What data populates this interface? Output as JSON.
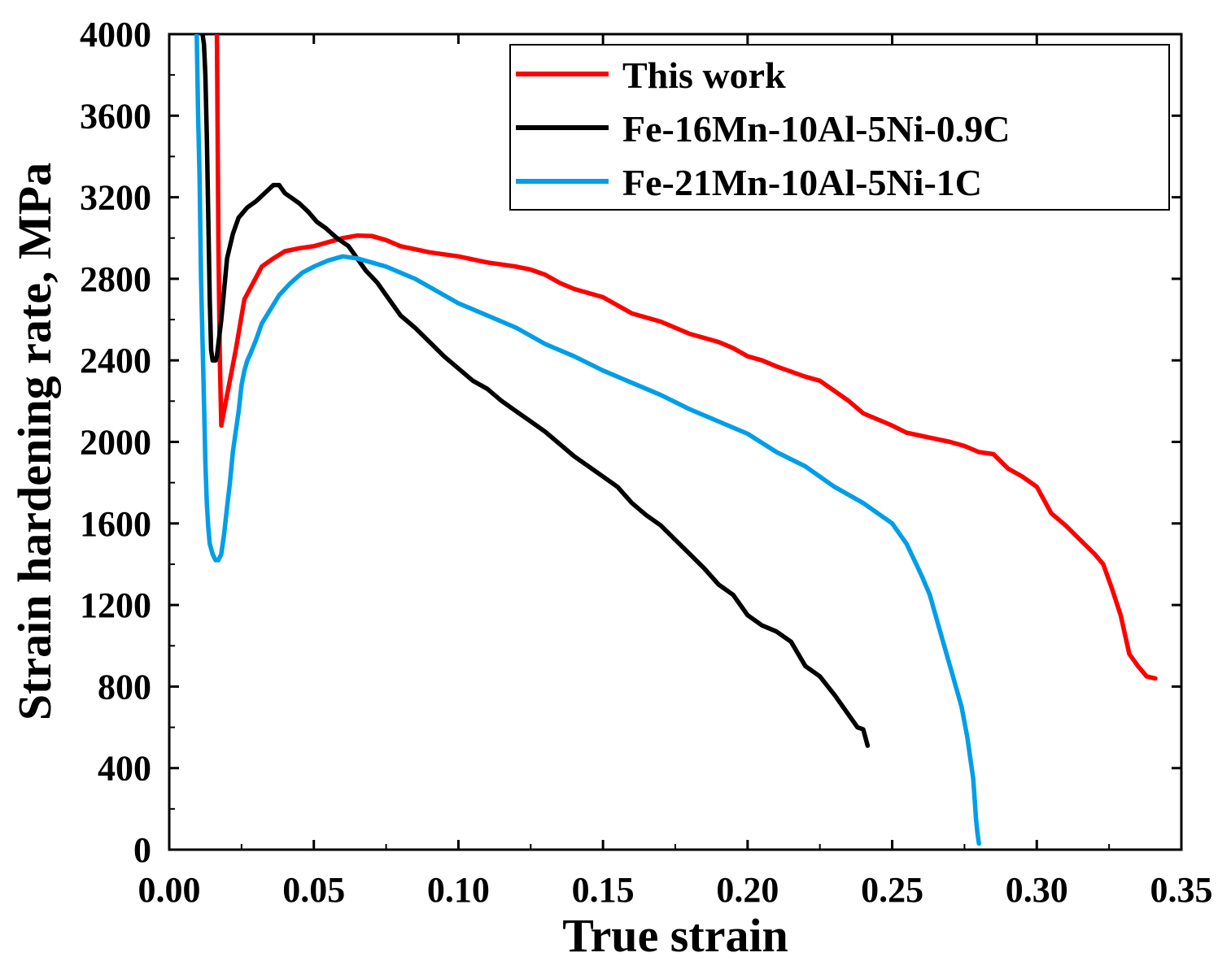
{
  "chart_data": {
    "type": "line",
    "title": "",
    "xlabel": "True strain",
    "ylabel": "Strain hardening rate, MPa",
    "xlim": [
      0,
      0.35
    ],
    "ylim": [
      0,
      4000
    ],
    "xticks": [
      0.0,
      0.05,
      0.1,
      0.15,
      0.2,
      0.25,
      0.3,
      0.35
    ],
    "xtick_labels": [
      "0.00",
      "0.05",
      "0.10",
      "0.15",
      "0.20",
      "0.25",
      "0.30",
      "0.35"
    ],
    "yticks": [
      0,
      400,
      800,
      1200,
      1600,
      2000,
      2400,
      2800,
      3200,
      3600,
      4000
    ],
    "ytick_labels": [
      "0",
      "400",
      "800",
      "1200",
      "1600",
      "2000",
      "2400",
      "2800",
      "3200",
      "3600",
      "4000"
    ],
    "grid": false,
    "legend_position": "top-right",
    "series": [
      {
        "name": "This work",
        "color": "#ff0000",
        "x": [
          0.0165,
          0.017,
          0.0175,
          0.018,
          0.0185,
          0.02,
          0.023,
          0.026,
          0.029,
          0.032,
          0.036,
          0.04,
          0.045,
          0.05,
          0.055,
          0.06,
          0.065,
          0.07,
          0.075,
          0.08,
          0.09,
          0.1,
          0.11,
          0.12,
          0.125,
          0.13,
          0.135,
          0.14,
          0.15,
          0.155,
          0.16,
          0.17,
          0.175,
          0.18,
          0.19,
          0.195,
          0.2,
          0.205,
          0.21,
          0.22,
          0.225,
          0.23,
          0.235,
          0.24,
          0.245,
          0.25,
          0.255,
          0.26,
          0.27,
          0.275,
          0.28,
          0.285,
          0.29,
          0.295,
          0.3,
          0.305,
          0.31,
          0.315,
          0.32,
          0.323,
          0.326,
          0.329,
          0.332,
          0.335,
          0.338,
          0.341
        ],
        "y": [
          4000,
          3000,
          2400,
          2080,
          2120,
          2230,
          2450,
          2700,
          2780,
          2860,
          2900,
          2935,
          2950,
          2960,
          2980,
          3000,
          3012,
          3010,
          2990,
          2960,
          2930,
          2910,
          2880,
          2860,
          2845,
          2820,
          2780,
          2750,
          2710,
          2670,
          2630,
          2590,
          2560,
          2530,
          2490,
          2460,
          2420,
          2400,
          2370,
          2320,
          2300,
          2250,
          2200,
          2140,
          2110,
          2080,
          2045,
          2030,
          2000,
          1980,
          1950,
          1940,
          1870,
          1830,
          1780,
          1650,
          1590,
          1520,
          1450,
          1400,
          1280,
          1150,
          960,
          900,
          850,
          840
        ]
      },
      {
        "name": "Fe-16Mn-10Al-5Ni-0.9C",
        "color": "#000000",
        "x": [
          0.0115,
          0.012,
          0.0125,
          0.013,
          0.0135,
          0.014,
          0.0145,
          0.015,
          0.016,
          0.0165,
          0.017,
          0.018,
          0.02,
          0.022,
          0.024,
          0.027,
          0.03,
          0.033,
          0.036,
          0.038,
          0.04,
          0.042,
          0.045,
          0.048,
          0.051,
          0.054,
          0.058,
          0.062,
          0.065,
          0.068,
          0.072,
          0.076,
          0.08,
          0.085,
          0.09,
          0.095,
          0.1,
          0.105,
          0.11,
          0.115,
          0.12,
          0.125,
          0.13,
          0.135,
          0.14,
          0.145,
          0.15,
          0.155,
          0.16,
          0.165,
          0.17,
          0.175,
          0.18,
          0.185,
          0.19,
          0.195,
          0.2,
          0.205,
          0.21,
          0.215,
          0.22,
          0.225,
          0.23,
          0.235,
          0.238,
          0.24,
          0.2415
        ],
        "y": [
          4000,
          3950,
          3800,
          3500,
          3100,
          2700,
          2450,
          2400,
          2400,
          2420,
          2480,
          2600,
          2900,
          3020,
          3100,
          3150,
          3180,
          3220,
          3260,
          3260,
          3220,
          3200,
          3170,
          3130,
          3080,
          3050,
          3000,
          2960,
          2900,
          2840,
          2780,
          2700,
          2620,
          2560,
          2490,
          2420,
          2360,
          2300,
          2260,
          2200,
          2150,
          2100,
          2050,
          1990,
          1930,
          1880,
          1830,
          1780,
          1700,
          1640,
          1590,
          1520,
          1450,
          1380,
          1300,
          1250,
          1150,
          1100,
          1070,
          1020,
          900,
          850,
          760,
          660,
          600,
          590,
          510
        ]
      },
      {
        "name": "Fe-21Mn-10Al-5Ni-1C",
        "color": "#009ee8",
        "x": [
          0.0095,
          0.01,
          0.0105,
          0.011,
          0.0115,
          0.012,
          0.0125,
          0.013,
          0.0135,
          0.014,
          0.015,
          0.016,
          0.017,
          0.018,
          0.019,
          0.02,
          0.021,
          0.022,
          0.023,
          0.024,
          0.025,
          0.026,
          0.027,
          0.028,
          0.03,
          0.032,
          0.035,
          0.038,
          0.042,
          0.046,
          0.05,
          0.055,
          0.06,
          0.065,
          0.07,
          0.075,
          0.08,
          0.085,
          0.09,
          0.095,
          0.1,
          0.11,
          0.12,
          0.13,
          0.14,
          0.15,
          0.16,
          0.17,
          0.18,
          0.19,
          0.2,
          0.21,
          0.22,
          0.23,
          0.24,
          0.25,
          0.255,
          0.26,
          0.263,
          0.266,
          0.269,
          0.272,
          0.274,
          0.276,
          0.277,
          0.278,
          0.2785,
          0.279,
          0.2795,
          0.28
        ],
        "y": [
          4000,
          3600,
          3300,
          2800,
          2500,
          2200,
          1900,
          1700,
          1580,
          1500,
          1450,
          1420,
          1420,
          1450,
          1550,
          1680,
          1800,
          1950,
          2050,
          2150,
          2280,
          2350,
          2400,
          2430,
          2500,
          2580,
          2650,
          2720,
          2780,
          2830,
          2860,
          2890,
          2910,
          2900,
          2880,
          2860,
          2830,
          2800,
          2760,
          2720,
          2680,
          2620,
          2560,
          2480,
          2420,
          2350,
          2290,
          2230,
          2160,
          2100,
          2040,
          1950,
          1880,
          1780,
          1700,
          1600,
          1500,
          1350,
          1250,
          1100,
          950,
          800,
          700,
          550,
          450,
          350,
          250,
          150,
          80,
          30
        ]
      }
    ]
  }
}
